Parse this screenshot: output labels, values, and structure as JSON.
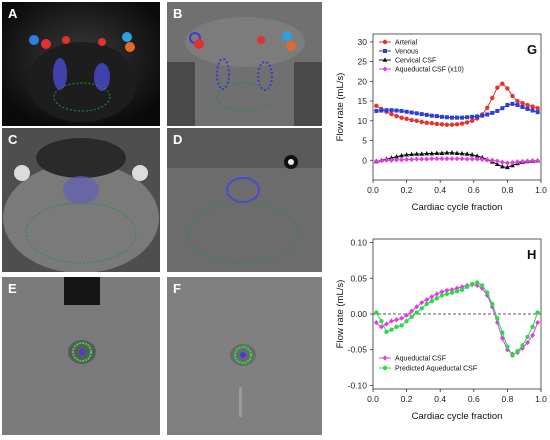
{
  "panels": {
    "A": {
      "label": "A"
    },
    "B": {
      "label": "B"
    },
    "C": {
      "label": "C"
    },
    "D": {
      "label": "D"
    },
    "E": {
      "label": "E"
    },
    "F": {
      "label": "F"
    }
  },
  "colors": {
    "arterial": "#e8312b",
    "venous": "#2a3fd6",
    "cervical": "#111111",
    "aqueductal": "#e23be0",
    "predicted": "#2fd84a"
  },
  "chart_data": [
    {
      "panel_label": "G",
      "type": "line",
      "ylabel": "Flow rate (mL/s)",
      "xlabel": "Cardiac cycle fraction",
      "xlim": [
        0,
        1
      ],
      "ylim": [
        -5,
        32
      ],
      "yticks": [
        0,
        5,
        10,
        15,
        20,
        25,
        30
      ],
      "xticks": [
        0.0,
        0.2,
        0.4,
        0.6,
        0.8,
        1.0
      ],
      "xtick_labels": [
        "0.0",
        "0.2",
        "0.4",
        "0.6",
        "0.8",
        "1.0"
      ],
      "grid": false,
      "legend_position": "top-left",
      "x": [
        0.02,
        0.05,
        0.08,
        0.11,
        0.14,
        0.17,
        0.2,
        0.23,
        0.26,
        0.29,
        0.32,
        0.35,
        0.38,
        0.41,
        0.44,
        0.47,
        0.5,
        0.53,
        0.56,
        0.59,
        0.62,
        0.65,
        0.68,
        0.71,
        0.74,
        0.77,
        0.8,
        0.83,
        0.86,
        0.89,
        0.92,
        0.95,
        0.98
      ],
      "series": [
        {
          "name": "Arterial",
          "color_key": "arterial",
          "marker": "circle",
          "values": [
            13.8,
            13.0,
            12.3,
            11.7,
            11.2,
            10.8,
            10.5,
            10.2,
            10.0,
            9.7,
            9.5,
            9.4,
            9.2,
            9.1,
            9.0,
            9.0,
            9.1,
            9.3,
            9.6,
            10.0,
            10.6,
            11.6,
            13.3,
            15.8,
            18.4,
            19.4,
            18.2,
            16.3,
            15.0,
            14.5,
            14.0,
            13.6,
            13.2
          ]
        },
        {
          "name": "Venous",
          "color_key": "venous",
          "marker": "square",
          "values": [
            12.5,
            12.6,
            12.7,
            12.7,
            12.6,
            12.5,
            12.3,
            12.1,
            11.9,
            11.7,
            11.5,
            11.3,
            11.2,
            11.0,
            10.9,
            10.8,
            10.8,
            10.8,
            10.9,
            11.0,
            11.1,
            11.3,
            11.6,
            12.0,
            12.5,
            13.2,
            14.0,
            14.3,
            14.0,
            13.5,
            13.0,
            12.6,
            12.2
          ]
        },
        {
          "name": "Cervical CSF",
          "color_key": "cervical",
          "marker": "triangle",
          "values": [
            -0.3,
            0.0,
            0.3,
            0.6,
            0.9,
            1.2,
            1.4,
            1.5,
            1.6,
            1.6,
            1.7,
            1.7,
            1.8,
            1.8,
            1.9,
            1.9,
            1.8,
            1.7,
            1.6,
            1.4,
            1.1,
            0.7,
            0.2,
            -0.4,
            -1.0,
            -1.6,
            -1.8,
            -1.3,
            -0.8,
            -0.5,
            -0.3,
            -0.2,
            -0.1
          ]
        },
        {
          "name": "Aqueductal CSF (x10)",
          "color_key": "aqueductal",
          "marker": "diamond",
          "values": [
            -0.2,
            -0.1,
            0.0,
            0.0,
            0.1,
            0.1,
            0.2,
            0.2,
            0.3,
            0.3,
            0.3,
            0.4,
            0.4,
            0.4,
            0.4,
            0.4,
            0.4,
            0.4,
            0.3,
            0.3,
            0.3,
            0.2,
            0.1,
            0.0,
            -0.2,
            -0.5,
            -0.7,
            -0.6,
            -0.4,
            -0.3,
            -0.2,
            -0.1,
            -0.1
          ]
        }
      ]
    },
    {
      "panel_label": "H",
      "type": "line",
      "ylabel": "Flow rate (mL/s)",
      "xlabel": "Cardiac cycle fraction",
      "xlim": [
        0,
        1
      ],
      "ylim": [
        -0.105,
        0.105
      ],
      "yticks": [
        -0.1,
        -0.05,
        0.0,
        0.05,
        0.1
      ],
      "ytick_labels": [
        "-0.10",
        "-0.05",
        "0.00",
        "0.05",
        "0.10"
      ],
      "xticks": [
        0.0,
        0.2,
        0.4,
        0.6,
        0.8,
        1.0
      ],
      "xtick_labels": [
        "0.0",
        "0.2",
        "0.4",
        "0.6",
        "0.8",
        "1.0"
      ],
      "reference_line": 0,
      "grid": false,
      "legend_position": "bottom-left",
      "x": [
        0.02,
        0.05,
        0.08,
        0.11,
        0.14,
        0.17,
        0.2,
        0.23,
        0.26,
        0.29,
        0.32,
        0.35,
        0.38,
        0.41,
        0.44,
        0.47,
        0.5,
        0.53,
        0.56,
        0.59,
        0.62,
        0.65,
        0.68,
        0.71,
        0.74,
        0.77,
        0.8,
        0.83,
        0.86,
        0.89,
        0.92,
        0.95,
        0.98
      ],
      "series": [
        {
          "name": "Aqueductal CSF",
          "color_key": "aqueductal",
          "marker": "diamond",
          "values": [
            -0.012,
            -0.018,
            -0.014,
            -0.01,
            -0.008,
            -0.006,
            -0.002,
            0.004,
            0.01,
            0.016,
            0.02,
            0.024,
            0.028,
            0.031,
            0.033,
            0.034,
            0.036,
            0.038,
            0.04,
            0.041,
            0.04,
            0.036,
            0.026,
            0.01,
            -0.012,
            -0.034,
            -0.05,
            -0.056,
            -0.054,
            -0.048,
            -0.04,
            -0.03,
            -0.012
          ]
        },
        {
          "name": "Predicted Aqueductal CSF",
          "color_key": "predicted",
          "marker": "circle",
          "values": [
            0.002,
            -0.01,
            -0.025,
            -0.022,
            -0.018,
            -0.016,
            -0.01,
            -0.004,
            0.002,
            0.008,
            0.014,
            0.018,
            0.022,
            0.026,
            0.028,
            0.03,
            0.032,
            0.034,
            0.038,
            0.042,
            0.044,
            0.04,
            0.03,
            0.014,
            -0.006,
            -0.026,
            -0.046,
            -0.058,
            -0.052,
            -0.044,
            -0.032,
            -0.018,
            0.002
          ]
        }
      ]
    }
  ]
}
